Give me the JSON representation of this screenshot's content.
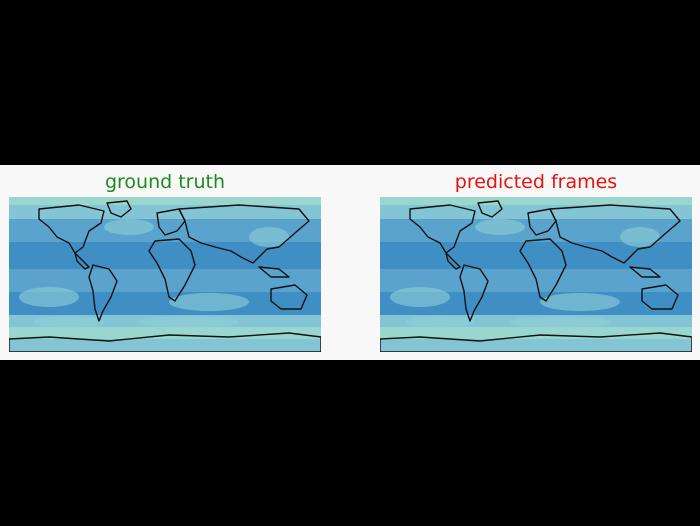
{
  "figure": {
    "panels": [
      {
        "title": "ground truth",
        "title_color": "#1e8a1e"
      },
      {
        "title": "predicted frames",
        "title_color": "#e8120c"
      }
    ]
  },
  "colors": {
    "ocean_deep": "#3f8fc4",
    "ocean_mid": "#5ea7cf",
    "ocean_light": "#8fcfd7",
    "polar": "#a9e3cf",
    "coast": "#111111",
    "panel_bg": "#f8f8f8",
    "outer_bg": "#000000"
  }
}
